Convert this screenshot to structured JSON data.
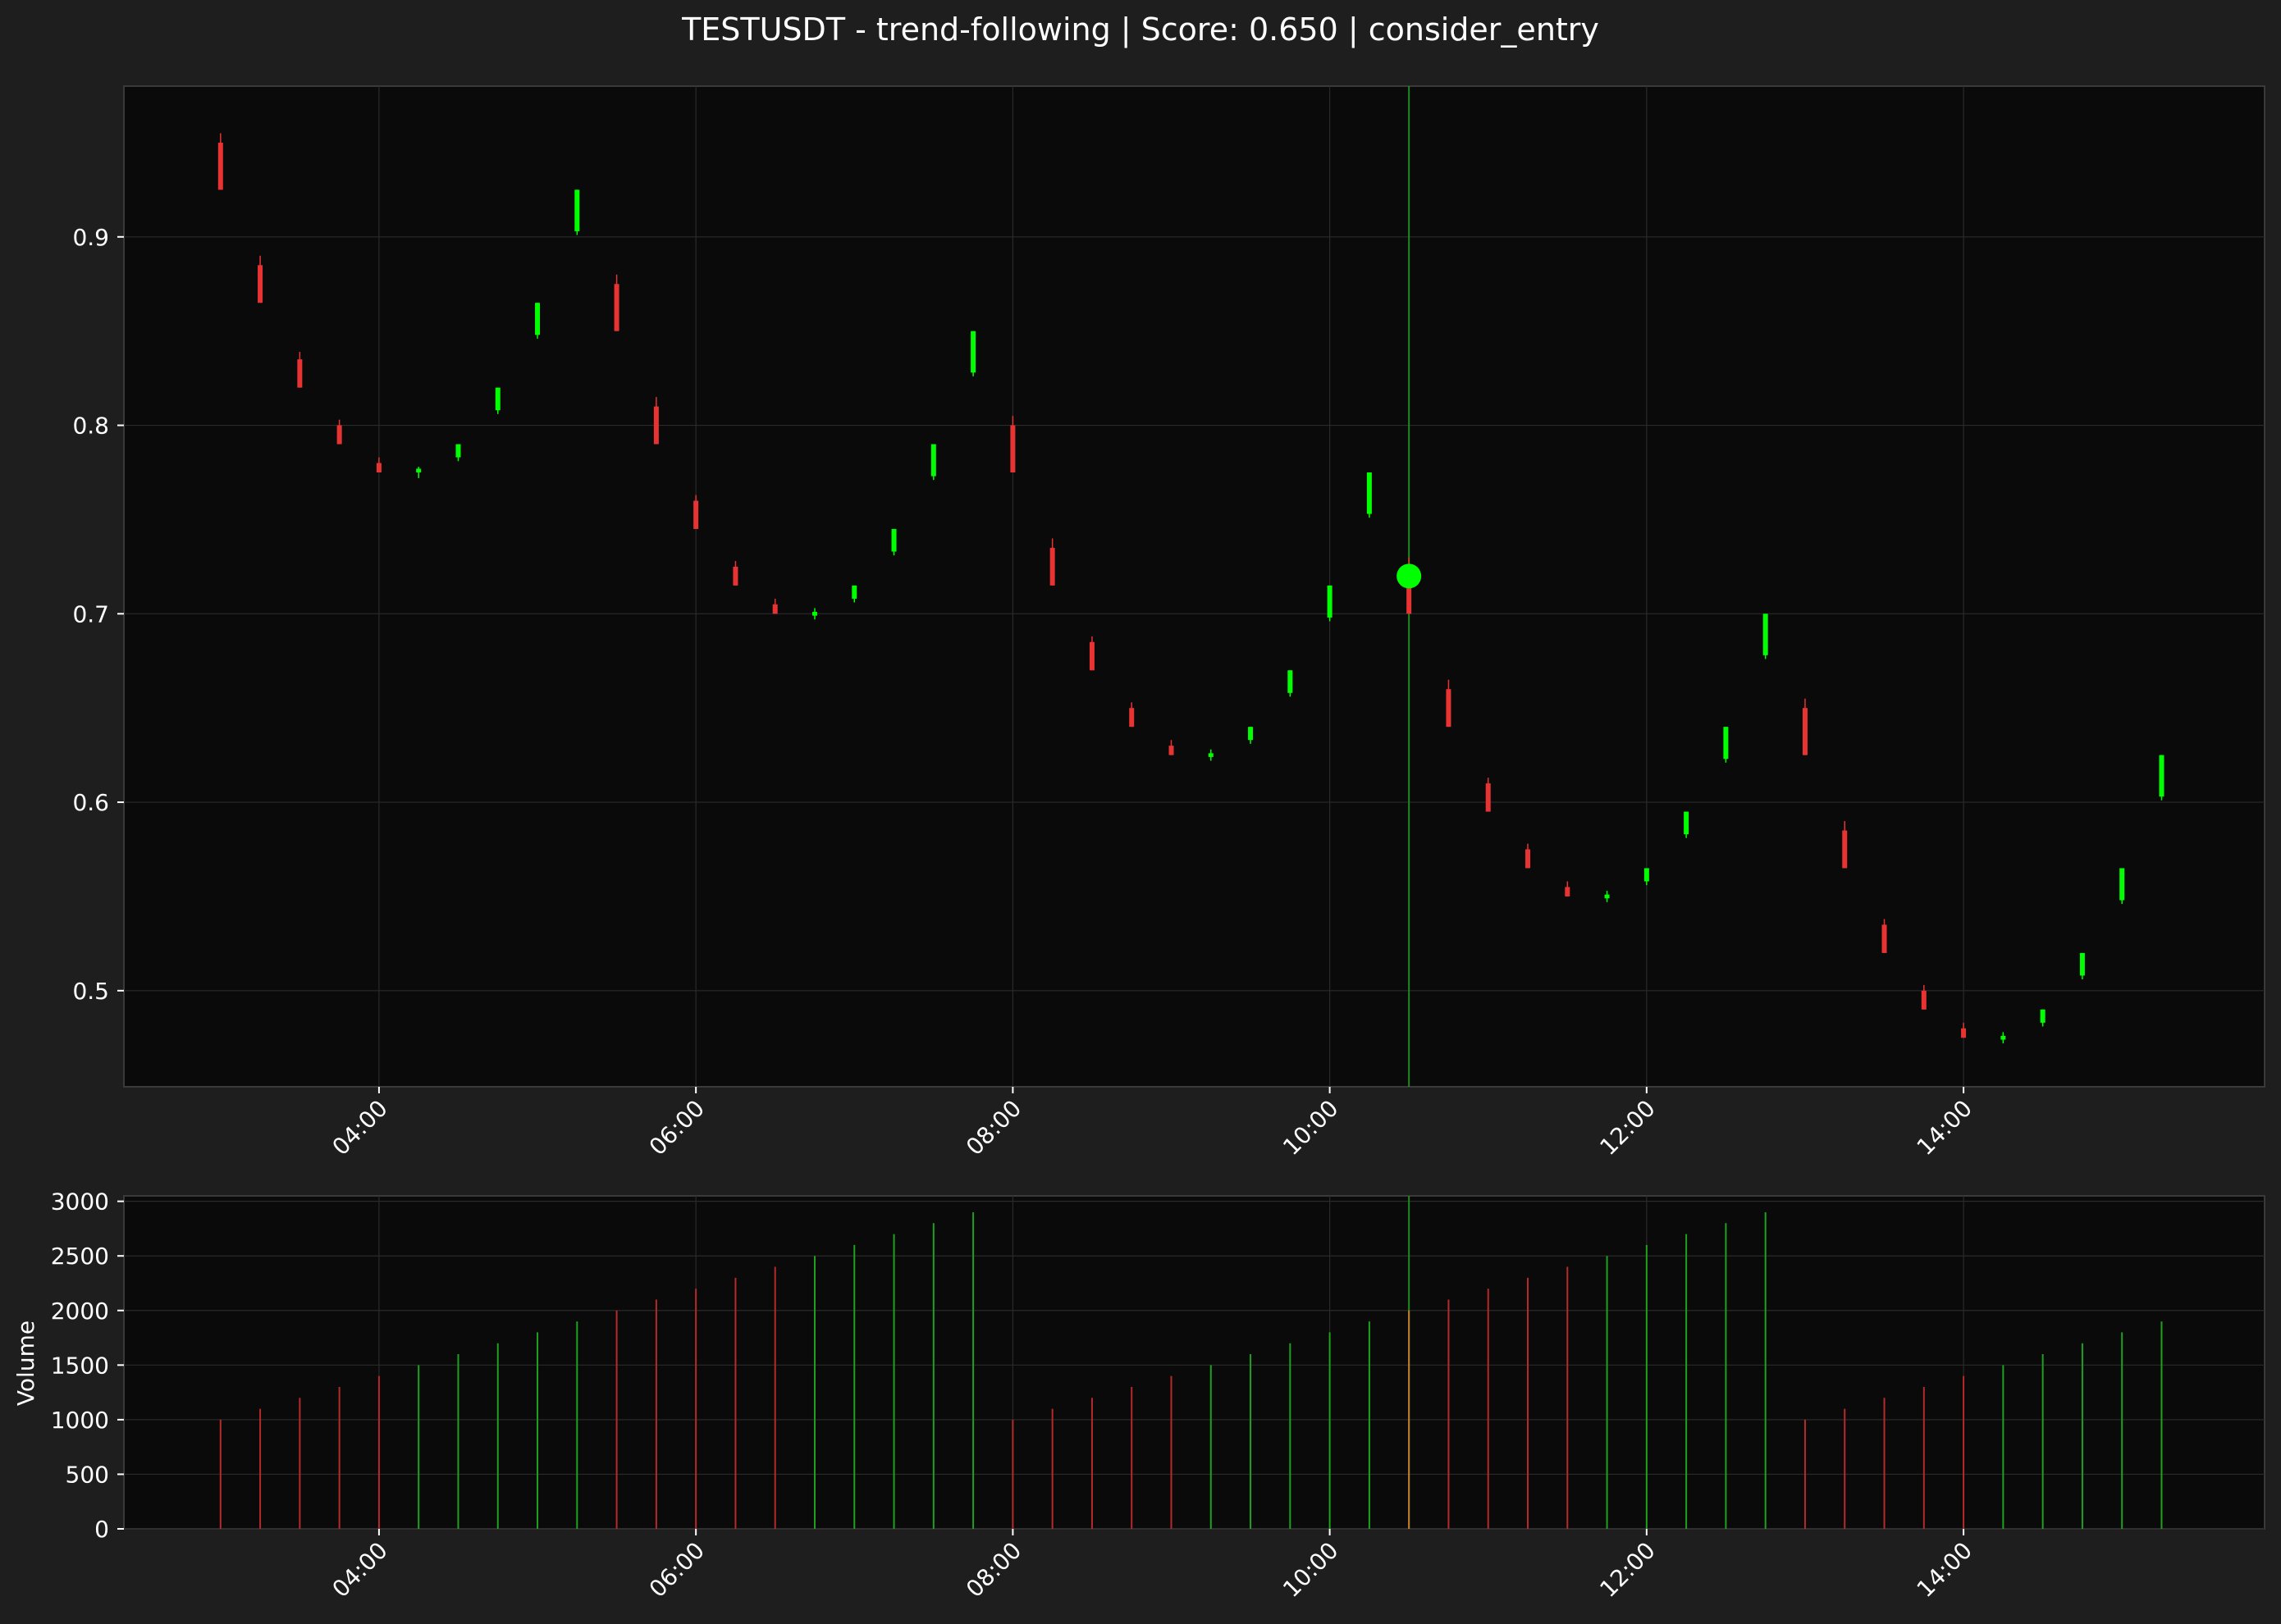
{
  "chart_data": [
    {
      "type": "candlestick",
      "panel": "price",
      "title": "TESTUSDT - trend-following | Score: 0.650 | consider_entry",
      "x_unit": "hours",
      "x_ticks": [
        4,
        6,
        8,
        10,
        12,
        14
      ],
      "x_tick_labels": [
        "04:00",
        "06:00",
        "08:00",
        "10:00",
        "12:00",
        "14:00"
      ],
      "xlim": [
        2.39,
        15.9
      ],
      "ylim": [
        0.449,
        0.98
      ],
      "y_ticks": [
        0.5,
        0.6,
        0.7,
        0.8,
        0.9
      ],
      "y_tick_labels": [
        "0.5",
        "0.6",
        "0.7",
        "0.8",
        "0.9"
      ],
      "grid": true,
      "colors": {
        "up": "#00ff00",
        "down": "#e83333",
        "marker": "#00ff00",
        "signal_line": "#1f8a1f",
        "panel_bg": "#0a0a0a",
        "figure_bg": "#1e1e1e",
        "grid": "#2a2a2a"
      },
      "signal": {
        "x": 10.5,
        "price": 0.72,
        "label": "consider_entry"
      },
      "candles": [
        {
          "t": 3.0,
          "open": 0.95,
          "high": 0.955,
          "low": 0.925,
          "close": 0.925
        },
        {
          "t": 3.25,
          "open": 0.885,
          "high": 0.89,
          "low": 0.865,
          "close": 0.865
        },
        {
          "t": 3.5,
          "open": 0.835,
          "high": 0.839,
          "low": 0.82,
          "close": 0.82
        },
        {
          "t": 3.75,
          "open": 0.8,
          "high": 0.803,
          "low": 0.79,
          "close": 0.79
        },
        {
          "t": 4.0,
          "open": 0.78,
          "high": 0.783,
          "low": 0.775,
          "close": 0.775
        },
        {
          "t": 4.25,
          "open": 0.775,
          "high": 0.778,
          "low": 0.772,
          "close": 0.777
        },
        {
          "t": 4.5,
          "open": 0.783,
          "high": 0.79,
          "low": 0.781,
          "close": 0.79
        },
        {
          "t": 4.75,
          "open": 0.808,
          "high": 0.82,
          "low": 0.806,
          "close": 0.82
        },
        {
          "t": 5.0,
          "open": 0.848,
          "high": 0.865,
          "low": 0.846,
          "close": 0.865
        },
        {
          "t": 5.25,
          "open": 0.903,
          "high": 0.925,
          "low": 0.901,
          "close": 0.925
        },
        {
          "t": 5.5,
          "open": 0.875,
          "high": 0.88,
          "low": 0.85,
          "close": 0.85
        },
        {
          "t": 5.75,
          "open": 0.81,
          "high": 0.815,
          "low": 0.79,
          "close": 0.79
        },
        {
          "t": 6.0,
          "open": 0.76,
          "high": 0.763,
          "low": 0.745,
          "close": 0.745
        },
        {
          "t": 6.25,
          "open": 0.725,
          "high": 0.728,
          "low": 0.715,
          "close": 0.715
        },
        {
          "t": 6.5,
          "open": 0.705,
          "high": 0.708,
          "low": 0.7,
          "close": 0.7
        },
        {
          "t": 6.75,
          "open": 0.699,
          "high": 0.703,
          "low": 0.697,
          "close": 0.701
        },
        {
          "t": 7.0,
          "open": 0.708,
          "high": 0.715,
          "low": 0.706,
          "close": 0.715
        },
        {
          "t": 7.25,
          "open": 0.733,
          "high": 0.745,
          "low": 0.731,
          "close": 0.745
        },
        {
          "t": 7.5,
          "open": 0.773,
          "high": 0.79,
          "low": 0.771,
          "close": 0.79
        },
        {
          "t": 7.75,
          "open": 0.828,
          "high": 0.85,
          "low": 0.826,
          "close": 0.85
        },
        {
          "t": 8.0,
          "open": 0.8,
          "high": 0.805,
          "low": 0.775,
          "close": 0.775
        },
        {
          "t": 8.25,
          "open": 0.735,
          "high": 0.74,
          "low": 0.715,
          "close": 0.715
        },
        {
          "t": 8.5,
          "open": 0.685,
          "high": 0.688,
          "low": 0.67,
          "close": 0.67
        },
        {
          "t": 8.75,
          "open": 0.65,
          "high": 0.653,
          "low": 0.64,
          "close": 0.64
        },
        {
          "t": 9.0,
          "open": 0.63,
          "high": 0.633,
          "low": 0.625,
          "close": 0.625
        },
        {
          "t": 9.25,
          "open": 0.624,
          "high": 0.628,
          "low": 0.622,
          "close": 0.626
        },
        {
          "t": 9.5,
          "open": 0.633,
          "high": 0.64,
          "low": 0.631,
          "close": 0.64
        },
        {
          "t": 9.75,
          "open": 0.658,
          "high": 0.67,
          "low": 0.656,
          "close": 0.67
        },
        {
          "t": 10.0,
          "open": 0.698,
          "high": 0.715,
          "low": 0.696,
          "close": 0.715
        },
        {
          "t": 10.25,
          "open": 0.753,
          "high": 0.775,
          "low": 0.751,
          "close": 0.775
        },
        {
          "t": 10.5,
          "open": 0.725,
          "high": 0.73,
          "low": 0.7,
          "close": 0.7
        },
        {
          "t": 10.75,
          "open": 0.66,
          "high": 0.665,
          "low": 0.64,
          "close": 0.64
        },
        {
          "t": 11.0,
          "open": 0.61,
          "high": 0.613,
          "low": 0.595,
          "close": 0.595
        },
        {
          "t": 11.25,
          "open": 0.575,
          "high": 0.578,
          "low": 0.565,
          "close": 0.565
        },
        {
          "t": 11.5,
          "open": 0.555,
          "high": 0.558,
          "low": 0.55,
          "close": 0.55
        },
        {
          "t": 11.75,
          "open": 0.549,
          "high": 0.553,
          "low": 0.547,
          "close": 0.551
        },
        {
          "t": 12.0,
          "open": 0.558,
          "high": 0.565,
          "low": 0.556,
          "close": 0.565
        },
        {
          "t": 12.25,
          "open": 0.583,
          "high": 0.595,
          "low": 0.581,
          "close": 0.595
        },
        {
          "t": 12.5,
          "open": 0.623,
          "high": 0.64,
          "low": 0.621,
          "close": 0.64
        },
        {
          "t": 12.75,
          "open": 0.678,
          "high": 0.7,
          "low": 0.676,
          "close": 0.7
        },
        {
          "t": 13.0,
          "open": 0.65,
          "high": 0.655,
          "low": 0.625,
          "close": 0.625
        },
        {
          "t": 13.25,
          "open": 0.585,
          "high": 0.59,
          "low": 0.565,
          "close": 0.565
        },
        {
          "t": 13.5,
          "open": 0.535,
          "high": 0.538,
          "low": 0.52,
          "close": 0.52
        },
        {
          "t": 13.75,
          "open": 0.5,
          "high": 0.503,
          "low": 0.49,
          "close": 0.49
        },
        {
          "t": 14.0,
          "open": 0.48,
          "high": 0.483,
          "low": 0.475,
          "close": 0.475
        },
        {
          "t": 14.25,
          "open": 0.474,
          "high": 0.478,
          "low": 0.472,
          "close": 0.476
        },
        {
          "t": 14.5,
          "open": 0.483,
          "high": 0.49,
          "low": 0.481,
          "close": 0.49
        },
        {
          "t": 14.75,
          "open": 0.508,
          "high": 0.52,
          "low": 0.506,
          "close": 0.52
        },
        {
          "t": 15.0,
          "open": 0.548,
          "high": 0.565,
          "low": 0.546,
          "close": 0.565
        },
        {
          "t": 15.25,
          "open": 0.603,
          "high": 0.625,
          "low": 0.601,
          "close": 0.625
        }
      ]
    },
    {
      "type": "bar",
      "panel": "volume",
      "ylabel": "Volume",
      "ylim": [
        0,
        3050
      ],
      "y_ticks": [
        0,
        500,
        1000,
        1500,
        2000,
        2500,
        3000
      ],
      "y_tick_labels": [
        "0",
        "500",
        "1000",
        "1500",
        "2000",
        "2500",
        "3000"
      ],
      "x_ticks": [
        4,
        6,
        8,
        10,
        12,
        14
      ],
      "x_tick_labels": [
        "04:00",
        "06:00",
        "08:00",
        "10:00",
        "12:00",
        "14:00"
      ],
      "values": [
        1000,
        1100,
        1200,
        1300,
        1400,
        1500,
        1600,
        1700,
        1800,
        1900,
        2000,
        2100,
        2200,
        2300,
        2400,
        2500,
        2600,
        2700,
        2800,
        2900,
        1000,
        1100,
        1200,
        1300,
        1400,
        1500,
        1600,
        1700,
        1800,
        1900,
        2000,
        2100,
        2200,
        2300,
        2400,
        2500,
        2600,
        2700,
        2800,
        2900,
        1000,
        1100,
        1200,
        1300,
        1400,
        1500,
        1600,
        1700,
        1800,
        1900
      ]
    }
  ]
}
